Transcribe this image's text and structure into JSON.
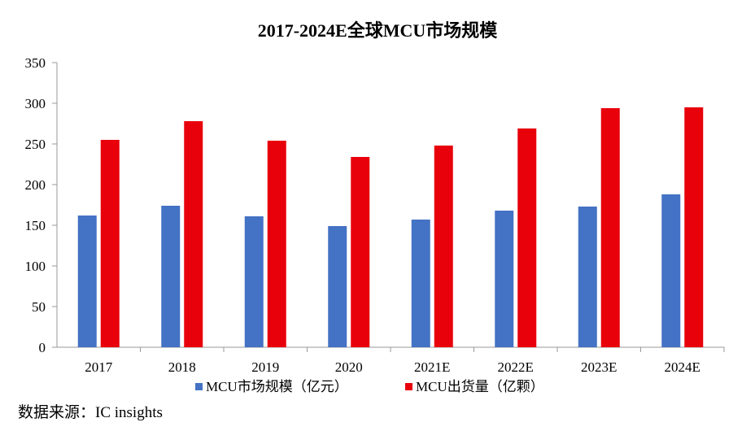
{
  "chart_data": {
    "type": "bar",
    "title": "2017-2024E全球MCU市场规模",
    "categories": [
      "2017",
      "2018",
      "2019",
      "2020",
      "2021E",
      "2022E",
      "2023E",
      "2024E"
    ],
    "series": [
      {
        "name": "MCU市场规模（亿元）",
        "color": "#4472C4",
        "values": [
          162,
          174,
          161,
          149,
          157,
          168,
          173,
          188
        ]
      },
      {
        "name": "MCU出货量（亿颗）",
        "color": "#E8000B",
        "values": [
          255,
          278,
          254,
          234,
          248,
          269,
          294,
          295
        ]
      }
    ],
    "ylim": [
      0,
      350
    ],
    "yticks": [
      0,
      50,
      100,
      150,
      200,
      250,
      300,
      350
    ],
    "grid": false,
    "legend_position": "bottom"
  },
  "source": "数据来源：IC insights"
}
